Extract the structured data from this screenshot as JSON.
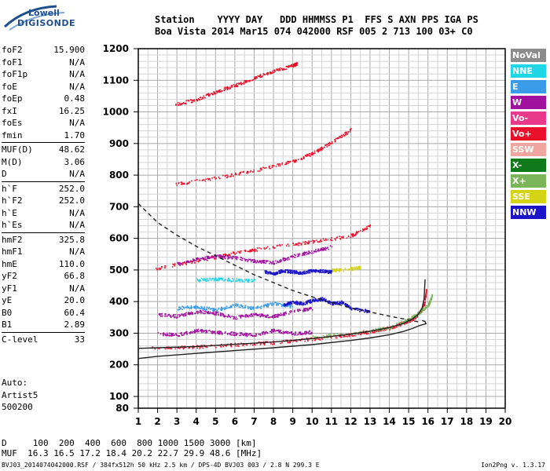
{
  "logo": {
    "line1": "Lowell",
    "line2": "DIGISONDE"
  },
  "header": {
    "line1": "Station    YYYY DAY   DDD HHMMSS P1  FFS S AXN PPS IGA PS",
    "line2": "Boa Vista 2014 Mar15 074 042000 RSF 005 2 713 100 03+ C0"
  },
  "params": [
    {
      "name": "foF2",
      "value": "15.900"
    },
    {
      "name": "foF1",
      "value": "N/A"
    },
    {
      "name": "foF1p",
      "value": "N/A"
    },
    {
      "name": "foE",
      "value": "N/A"
    },
    {
      "name": "foEp",
      "value": "0.48"
    },
    {
      "name": "fxI",
      "value": "16.25"
    },
    {
      "name": "foEs",
      "value": "N/A"
    },
    {
      "name": "fmin",
      "value": "1.70"
    },
    {
      "sep": true
    },
    {
      "name": "MUF(D)",
      "value": "48.62"
    },
    {
      "name": "M(D)",
      "value": "3.06"
    },
    {
      "name": "D",
      "value": "N/A"
    },
    {
      "sep": true
    },
    {
      "name": "h`F",
      "value": "252.0"
    },
    {
      "name": "h`F2",
      "value": "252.0"
    },
    {
      "name": "h`E",
      "value": "N/A"
    },
    {
      "name": "h`Es",
      "value": "N/A"
    },
    {
      "sep": true
    },
    {
      "name": "hmF2",
      "value": "325.8"
    },
    {
      "name": "hmF1",
      "value": "N/A"
    },
    {
      "name": "hmE",
      "value": "110.0"
    },
    {
      "name": "yF2",
      "value": "66.8"
    },
    {
      "name": "yF1",
      "value": "N/A"
    },
    {
      "name": "yE",
      "value": "20.0"
    },
    {
      "name": "B0",
      "value": "60.4"
    },
    {
      "name": "B1",
      "value": "2.89"
    },
    {
      "sep": true
    },
    {
      "name": "C-level",
      "value": "33"
    }
  ],
  "auto": {
    "line1": "Auto:",
    "line2": "Artist5",
    "line3": "500200"
  },
  "footer": {
    "line1": "D     100  200  400  600  800 1000 1500 3000 [km]",
    "line2": "MUF  16.3 16.5 17.2 18.4 20.2 22.7 29.9 48.6 [MHz]"
  },
  "bottomline": "BVJ03_2014074042000.RSF / 384fx512h 50 kHz 2.5 km / DPS-4D BVJ03 003 / 2.8 N 299.3 E",
  "version": "Ion2Png v. 1.3.17",
  "legend": [
    {
      "label": "NoVal",
      "color": "#8c8c8c"
    },
    {
      "label": "NNE",
      "color": "#1fd6e6"
    },
    {
      "label": "E",
      "color": "#3a9be8"
    },
    {
      "label": "W",
      "color": "#a0129e"
    },
    {
      "label": "Vo-",
      "color": "#e8398a"
    },
    {
      "label": "Vo+",
      "color": "#e8102a"
    },
    {
      "label": "SSW",
      "color": "#f0a6a0"
    },
    {
      "label": "X-",
      "color": "#0f7a19"
    },
    {
      "label": "X+",
      "color": "#7ab55a"
    },
    {
      "label": "SSE",
      "color": "#d4d414"
    },
    {
      "label": "NNW",
      "color": "#1c14c8"
    }
  ],
  "chart_data": {
    "type": "scatter",
    "xlim": [
      1,
      20
    ],
    "ylim": [
      80,
      1200
    ],
    "x_ticks": [
      "1",
      "2",
      "3",
      "4",
      "5",
      "6",
      "7",
      "8",
      "9",
      "10",
      "11",
      "12",
      "13",
      "14",
      "15",
      "16",
      "17",
      "18",
      "19",
      "20"
    ],
    "y_ticks": [
      "80",
      "100",
      "200",
      "300",
      "400",
      "500",
      "600",
      "700",
      "800",
      "900",
      "1000",
      "1100",
      "1200"
    ],
    "grid": true,
    "series": [
      {
        "name": "Vo+",
        "color": "#e8102a",
        "x": [
          1.7,
          4,
          6,
          8,
          10,
          12,
          13,
          14,
          14.8,
          15.3,
          15.6,
          15.8,
          15.9
        ],
        "y": [
          254,
          258,
          265,
          272,
          283,
          297,
          306,
          318,
          335,
          350,
          370,
          395,
          440
        ]
      },
      {
        "name": "Vo+",
        "color": "#e8102a",
        "x": [
          1.9,
          4,
          6,
          8,
          10,
          12,
          13
        ],
        "y": [
          505,
          530,
          555,
          575,
          590,
          610,
          640
        ]
      },
      {
        "name": "Vo+",
        "color": "#e8102a",
        "x": [
          2.9,
          5,
          7,
          9,
          10,
          11,
          12
        ],
        "y": [
          773,
          792,
          815,
          845,
          870,
          905,
          945
        ]
      },
      {
        "name": "Vo+",
        "color": "#e8102a",
        "x": [
          2.9,
          4,
          5,
          6,
          7,
          8,
          9,
          9.2
        ],
        "y": [
          1025,
          1040,
          1065,
          1085,
          1108,
          1130,
          1148,
          1155
        ]
      },
      {
        "name": "X+",
        "color": "#7ab55a",
        "x": [
          10,
          12,
          14,
          15,
          15.5,
          16,
          16.2
        ],
        "y": [
          288,
          300,
          320,
          345,
          365,
          390,
          420
        ]
      },
      {
        "name": "W",
        "color": "#a0129e",
        "x": [
          2,
          3,
          4,
          5,
          6,
          7,
          8,
          9,
          10
        ],
        "y": [
          300,
          296,
          310,
          305,
          300,
          295,
          310,
          300,
          305
        ]
      },
      {
        "name": "W",
        "color": "#a0129e",
        "x": [
          2,
          3,
          4,
          5,
          6,
          7,
          8,
          9,
          10
        ],
        "y": [
          360,
          355,
          370,
          365,
          350,
          360,
          355,
          370,
          380
        ]
      },
      {
        "name": "W",
        "color": "#a0129e",
        "x": [
          3,
          4,
          5,
          6,
          7,
          8,
          9,
          10,
          11
        ],
        "y": [
          520,
          535,
          545,
          540,
          530,
          525,
          545,
          560,
          575
        ]
      },
      {
        "name": "E",
        "color": "#3a9be8",
        "x": [
          3,
          4,
          5,
          6,
          7,
          8,
          9
        ],
        "y": [
          380,
          385,
          375,
          390,
          380,
          395,
          385
        ]
      },
      {
        "name": "NNW",
        "color": "#1c14c8",
        "x": [
          7.5,
          8,
          8.5,
          9,
          9.5,
          10,
          10.5,
          11
        ],
        "y": [
          495,
          490,
          500,
          495,
          492,
          500,
          498,
          495
        ]
      },
      {
        "name": "NNW",
        "color": "#1c14c8",
        "x": [
          8.5,
          9,
          9.5,
          10,
          10.5,
          11,
          11.5,
          12,
          13
        ],
        "y": [
          390,
          400,
          395,
          405,
          410,
          395,
          400,
          380,
          370
        ]
      },
      {
        "name": "NNE",
        "color": "#1fd6e6",
        "x": [
          4,
          5,
          6,
          7
        ],
        "y": [
          470,
          472,
          470,
          468
        ]
      },
      {
        "name": "SSE",
        "color": "#d4d414",
        "x": [
          11,
          12,
          12.5
        ],
        "y": [
          500,
          505,
          510
        ]
      }
    ],
    "curves": [
      {
        "style": "dashed",
        "x": [
          1,
          2,
          3,
          4,
          5,
          6,
          7,
          8,
          9,
          10,
          11,
          12,
          13,
          14,
          15,
          15.5
        ],
        "y": [
          710,
          650,
          610,
          575,
          545,
          515,
          485,
          460,
          435,
          415,
          397,
          380,
          367,
          354,
          342,
          336
        ]
      },
      {
        "style": "solid",
        "x": [
          1,
          2,
          4,
          6,
          8,
          10,
          12,
          13,
          14,
          14.7,
          15.2,
          15.5,
          15.7,
          15.8,
          15.85
        ],
        "y": [
          252,
          254,
          258,
          265,
          272,
          283,
          297,
          306,
          318,
          330,
          345,
          360,
          380,
          410,
          470
        ]
      },
      {
        "style": "solid",
        "x": [
          1,
          2,
          4,
          6,
          8,
          10,
          12,
          13,
          14,
          14.7,
          15.2,
          15.6,
          15.9,
          15.85,
          15.7
        ],
        "y": [
          220,
          227,
          236,
          245,
          254,
          264,
          277,
          285,
          295,
          305,
          315,
          325,
          330,
          337,
          340
        ]
      }
    ]
  }
}
